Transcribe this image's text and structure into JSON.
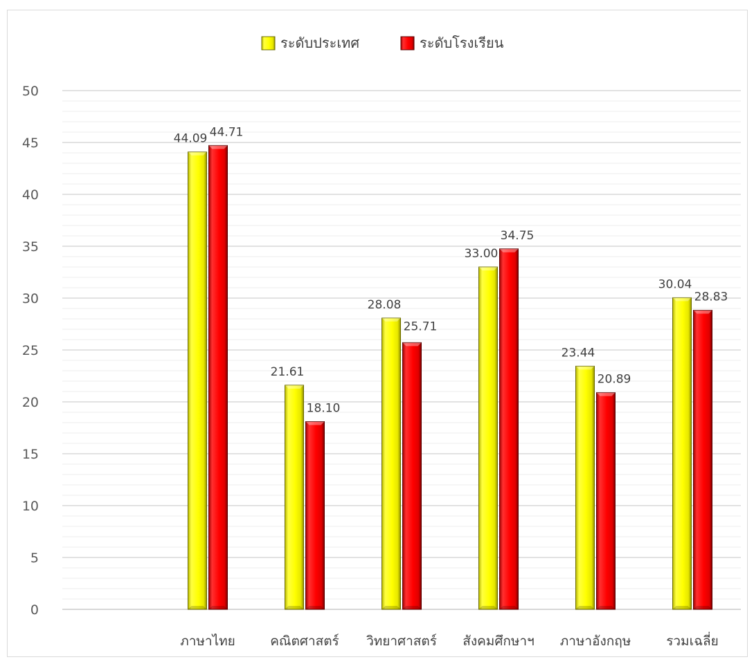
{
  "chart_data": {
    "type": "bar",
    "title": "",
    "xlabel": "",
    "ylabel": "",
    "ylim": [
      0,
      50
    ],
    "y_ticks": [
      0,
      5,
      10,
      15,
      20,
      25,
      30,
      35,
      40,
      45,
      50
    ],
    "grid": true,
    "legend_position": "top",
    "categories": [
      "",
      "ภาษาไทย",
      "คณิตศาสตร์",
      "วิทยาศาสตร์",
      "สังคมศึกษาฯ",
      "ภาษาอังกฤษ",
      "รวมเฉลี่ย"
    ],
    "series": [
      {
        "name": "ระดับประเทศ",
        "color": "#ffff00",
        "values": [
          null,
          44.09,
          21.61,
          28.08,
          33.0,
          23.44,
          30.04
        ],
        "labels": [
          "",
          "44.09",
          "21.61",
          "28.08",
          "33.00",
          "23.44",
          "30.04"
        ]
      },
      {
        "name": "ระดับโรงเรียน",
        "color": "#ff0000",
        "values": [
          null,
          44.71,
          18.1,
          25.71,
          34.75,
          20.89,
          28.83
        ],
        "labels": [
          "",
          "44.71",
          "18.10",
          "25.71",
          "34.75",
          "20.89",
          "28.83"
        ]
      }
    ]
  }
}
